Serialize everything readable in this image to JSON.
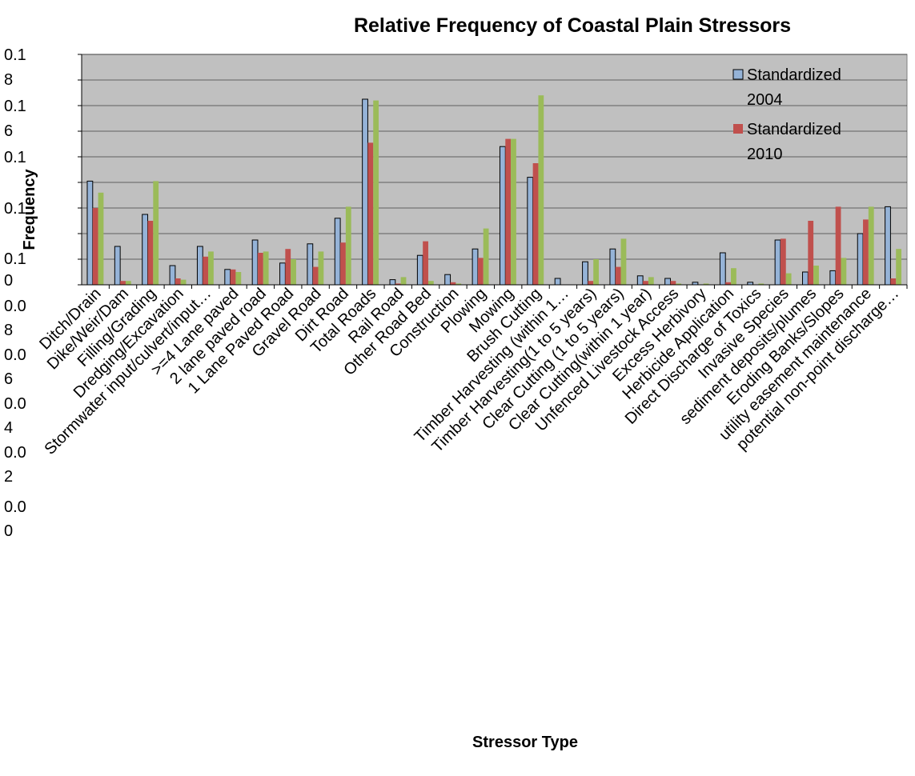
{
  "chart_data": {
    "type": "bar",
    "title": "Relative Frequency of Coastal Plain Stressors",
    "xlabel": "Stressor Type",
    "ylabel": "Frequency",
    "ylim": [
      0,
      0.18
    ],
    "y_tick_labels": [
      "0",
      "0.1",
      "0.1",
      "0.1",
      "0.1",
      "0.1 6",
      "0.1 8",
      "0.0 8",
      "0.0 6",
      "0.0 4",
      "0.0 2",
      "0.0 0"
    ],
    "grid": true,
    "legend_position": "top-right",
    "categories": [
      "Ditch/Drain",
      "Dike/Weir/Dam",
      "Filling/Grading",
      "Dredging/Excavation",
      "Stormwater input/culvert/input…",
      ">=4 Lane paved",
      "2 lane paved road",
      "1 Lane Paved Road",
      "Gravel Road",
      "Dirt Road",
      "Total Roads",
      "Rail Road",
      "Other Road Bed",
      "Construction",
      "Plowing",
      "Mowing",
      "Brush Cutting",
      "Timber Harvesting (within 1…",
      "Timber Harvesting(1 to 5 years)",
      "Clear Cutting (1 to 5 years)",
      "Clear Cutting(within 1 year)",
      "Unfenced Livestock Access",
      "Excess Herbivory",
      "Herbicide Application",
      "Direct Discharge of Toxics",
      "Invasive Species",
      "sediment deposits/plumes",
      "Eroding Banks/Slopes",
      "utility easement maintenance",
      "potential non-point discharge…"
    ],
    "series": [
      {
        "name": "Standardized 2004",
        "color": "#95B3D7",
        "values": [
          0.081,
          0.03,
          0.055,
          0.015,
          0.03,
          0.012,
          0.035,
          0.017,
          0.032,
          0.052,
          0.145,
          0.004,
          0.023,
          0.008,
          0.028,
          0.108,
          0.084,
          0.005,
          0.018,
          0.028,
          0.007,
          0.005,
          0.002,
          0.025,
          0.002,
          0.035,
          0.01,
          0.011,
          0.04,
          0.061
        ]
      },
      {
        "name": "Standardized 2010",
        "color": "#C0504D",
        "values": [
          0.06,
          0.003,
          0.05,
          0.005,
          0.022,
          0.012,
          0.025,
          0.028,
          0.014,
          0.033,
          0.111,
          0.001,
          0.034,
          0.002,
          0.021,
          0.114,
          0.095,
          0.0,
          0.003,
          0.014,
          0.003,
          0.003,
          0.0,
          0.002,
          0.0,
          0.036,
          0.05,
          0.061,
          0.051,
          0.005
        ]
      },
      {
        "name": "",
        "color": "#9BBB59",
        "values": [
          0.072,
          0.003,
          0.081,
          0.004,
          0.026,
          0.01,
          0.026,
          0.02,
          0.026,
          0.061,
          0.144,
          0.006,
          0.003,
          0.001,
          0.044,
          0.114,
          0.148,
          0.0,
          0.02,
          0.036,
          0.006,
          0.001,
          0.001,
          0.013,
          0.001,
          0.009,
          0.015,
          0.021,
          0.061,
          0.028
        ]
      }
    ]
  }
}
